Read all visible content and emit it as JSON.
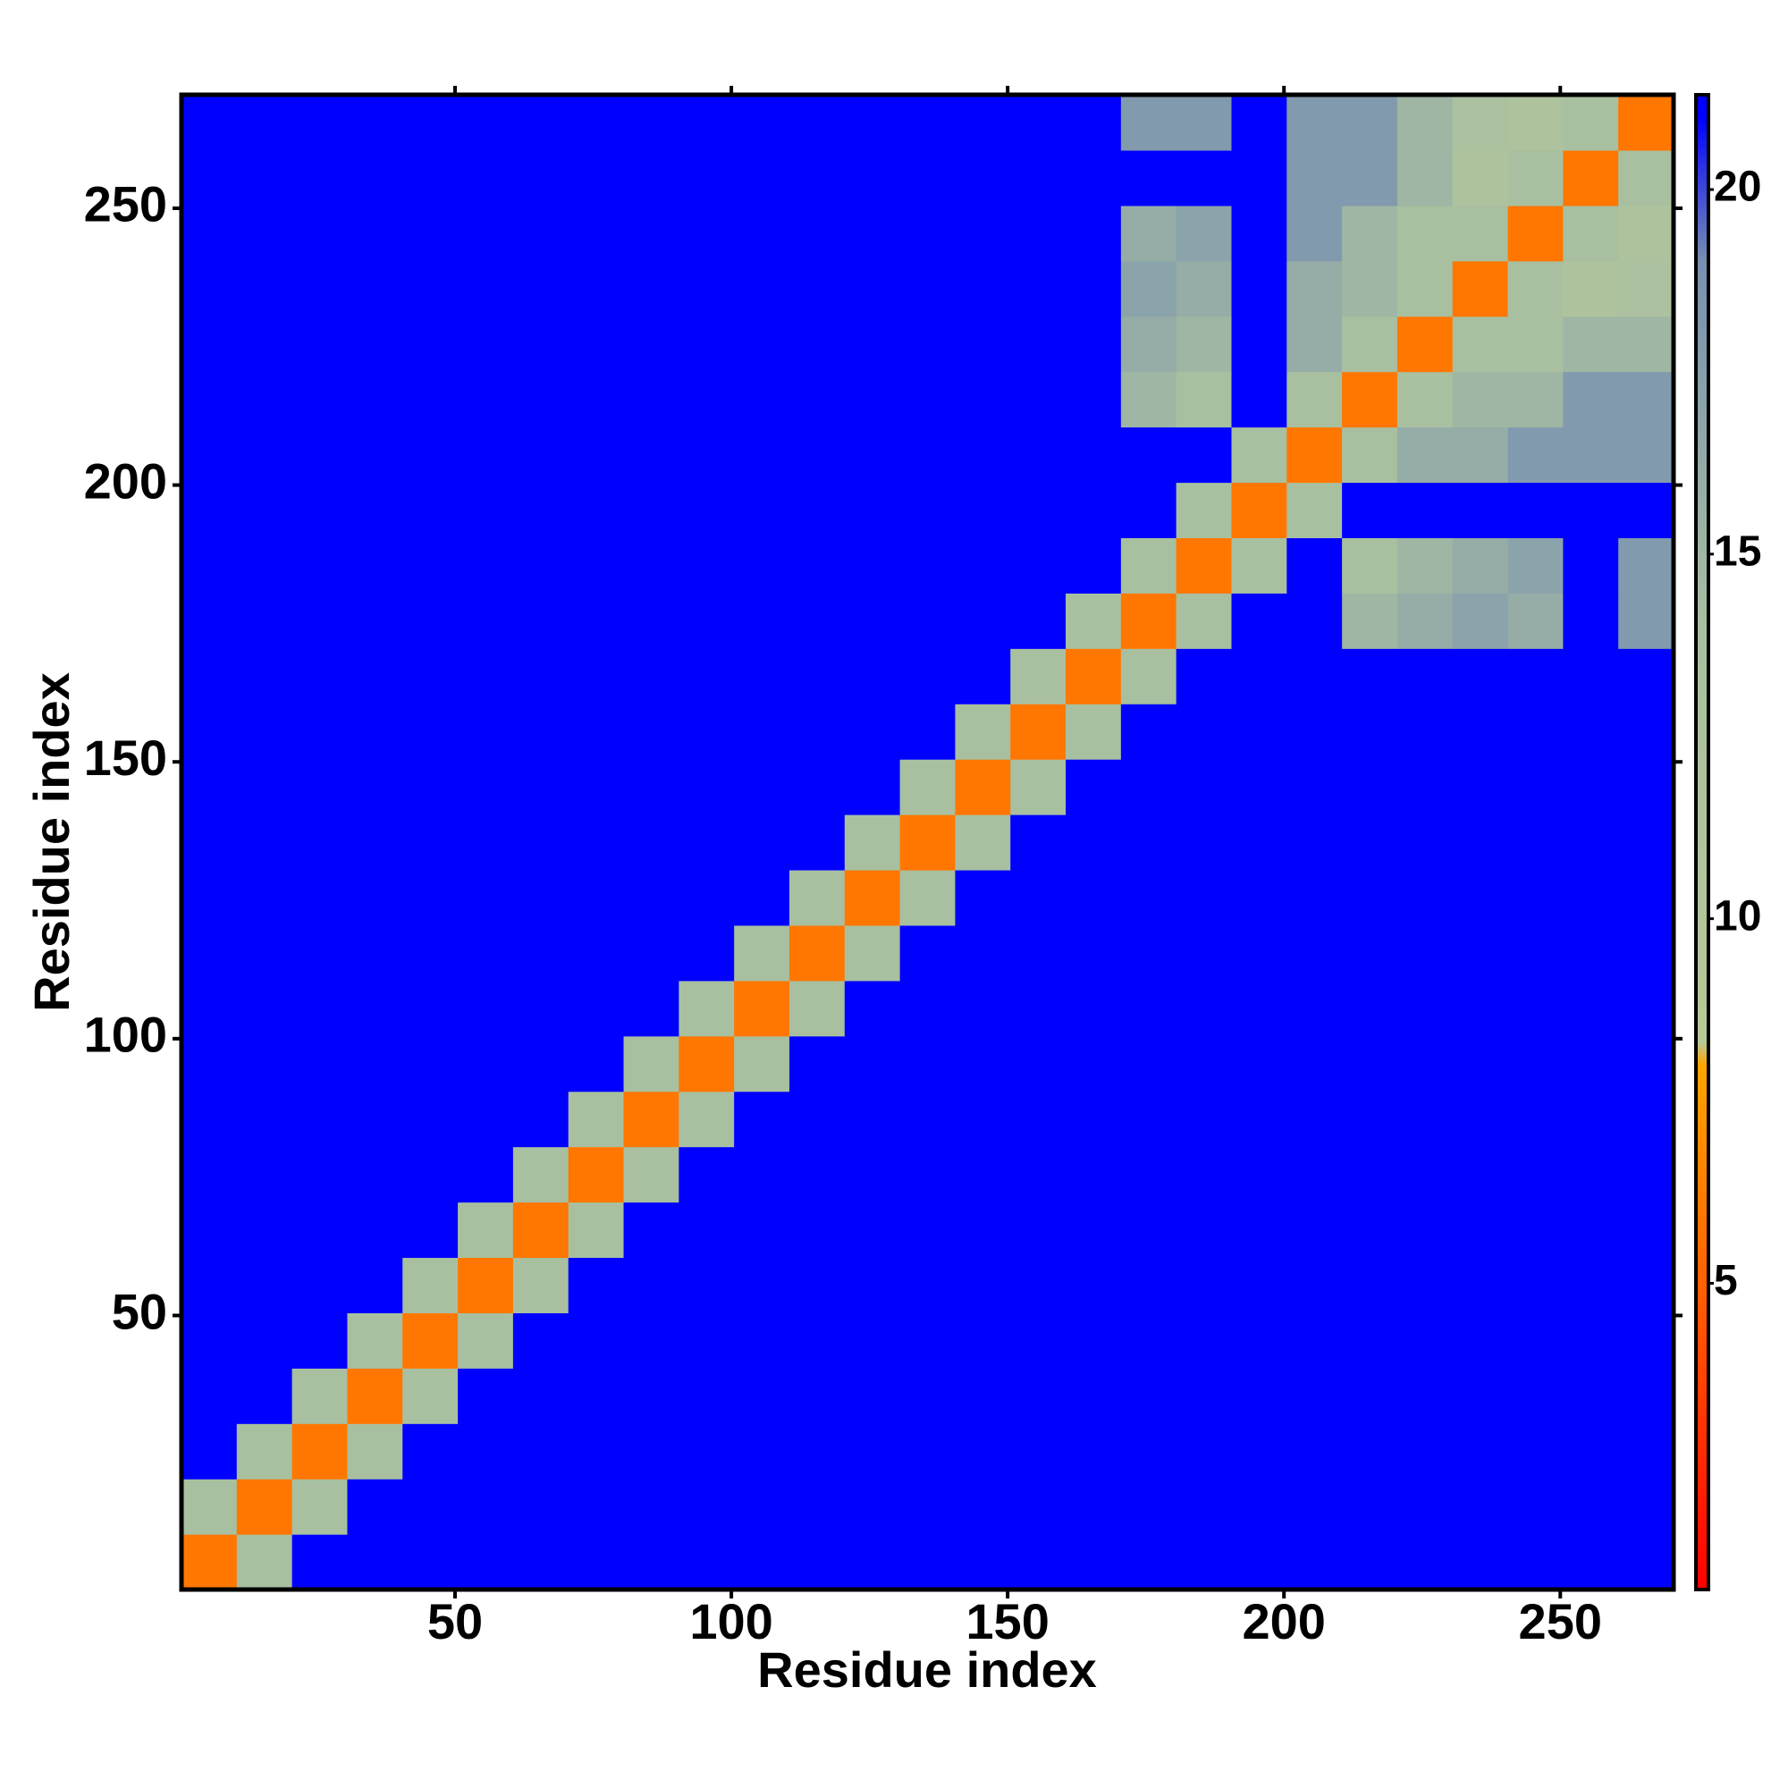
{
  "chart_data": {
    "type": "heatmap",
    "xlabel": "Residue index",
    "ylabel": "Residue index",
    "x": [
      5.5,
      15.5,
      25.5,
      35.5,
      45.5,
      55.5,
      65.5,
      75.5,
      85.5,
      95.5,
      105.5,
      115.5,
      125.5,
      135.5,
      145.5,
      155.5,
      165.5,
      175.5,
      185.5,
      195.5,
      205.5,
      215.5,
      225.5,
      235.5,
      245.5,
      255.5,
      265.5
    ],
    "y": [
      5.5,
      15.5,
      25.5,
      35.5,
      45.5,
      55.5,
      65.5,
      75.5,
      85.5,
      95.5,
      105.5,
      115.5,
      125.5,
      135.5,
      145.5,
      155.5,
      165.5,
      175.5,
      185.5,
      195.5,
      205.5,
      215.5,
      225.5,
      235.5,
      245.5,
      255.5,
      265.5
    ],
    "xlim": [
      0.5,
      270.5
    ],
    "ylim": [
      0.5,
      270.5
    ],
    "xticks": [
      50,
      100,
      150,
      200,
      250
    ],
    "yticks": [
      50,
      100,
      150,
      200,
      250
    ],
    "zlim": [
      0.8,
      21.3
    ],
    "zticks": [
      5,
      10,
      15,
      20
    ],
    "colorscale": [
      [
        0.8,
        "#ff0000"
      ],
      [
        8,
        "#ffa500"
      ],
      [
        8.3,
        "#b8c898"
      ],
      [
        14,
        "#a8c0a0"
      ],
      [
        19,
        "#7890b0"
      ],
      [
        21,
        "#0000ff"
      ]
    ],
    "z": [
      [
        6,
        14,
        21,
        21,
        21,
        21,
        21,
        21,
        21,
        21,
        21,
        21,
        21,
        21,
        21,
        21,
        21,
        21,
        21,
        21,
        21,
        21,
        21,
        21,
        21,
        21,
        21
      ],
      [
        14,
        6,
        14,
        21,
        21,
        21,
        21,
        21,
        21,
        21,
        21,
        21,
        21,
        21,
        21,
        21,
        21,
        21,
        21,
        21,
        21,
        21,
        21,
        21,
        21,
        21,
        21
      ],
      [
        21,
        14,
        6,
        14,
        21,
        21,
        21,
        21,
        21,
        21,
        21,
        21,
        21,
        21,
        21,
        21,
        21,
        21,
        21,
        21,
        21,
        21,
        21,
        21,
        21,
        21,
        21
      ],
      [
        21,
        21,
        14,
        6,
        14,
        21,
        21,
        21,
        21,
        21,
        21,
        21,
        21,
        21,
        21,
        21,
        21,
        21,
        21,
        21,
        21,
        21,
        21,
        21,
        21,
        21,
        21
      ],
      [
        21,
        21,
        21,
        14,
        6,
        14,
        21,
        21,
        21,
        21,
        21,
        21,
        21,
        21,
        21,
        21,
        21,
        21,
        21,
        21,
        21,
        21,
        21,
        21,
        21,
        21,
        21
      ],
      [
        21,
        21,
        21,
        21,
        14,
        6,
        14,
        21,
        21,
        21,
        21,
        21,
        21,
        21,
        21,
        21,
        21,
        21,
        21,
        21,
        21,
        21,
        21,
        21,
        21,
        21,
        21
      ],
      [
        21,
        21,
        21,
        21,
        21,
        14,
        6,
        14,
        21,
        21,
        21,
        21,
        21,
        21,
        21,
        21,
        21,
        21,
        21,
        21,
        21,
        21,
        21,
        21,
        21,
        21,
        21
      ],
      [
        21,
        21,
        21,
        21,
        21,
        21,
        14,
        6,
        14,
        21,
        21,
        21,
        21,
        21,
        21,
        21,
        21,
        21,
        21,
        21,
        21,
        21,
        21,
        21,
        21,
        21,
        21
      ],
      [
        21,
        21,
        21,
        21,
        21,
        21,
        21,
        14,
        6,
        14,
        21,
        21,
        21,
        21,
        21,
        21,
        21,
        21,
        21,
        21,
        21,
        21,
        21,
        21,
        21,
        21,
        21
      ],
      [
        21,
        21,
        21,
        21,
        21,
        21,
        21,
        21,
        14,
        6,
        14,
        21,
        21,
        21,
        21,
        21,
        21,
        21,
        21,
        21,
        21,
        21,
        21,
        21,
        21,
        21,
        21
      ],
      [
        21,
        21,
        21,
        21,
        21,
        21,
        21,
        21,
        21,
        14,
        6,
        14,
        21,
        21,
        21,
        21,
        21,
        21,
        21,
        21,
        21,
        21,
        21,
        21,
        21,
        21,
        21
      ],
      [
        21,
        21,
        21,
        21,
        21,
        21,
        21,
        21,
        21,
        21,
        14,
        6,
        14,
        21,
        21,
        21,
        21,
        21,
        21,
        21,
        21,
        21,
        21,
        21,
        21,
        21,
        21
      ],
      [
        21,
        21,
        21,
        21,
        21,
        21,
        21,
        21,
        21,
        21,
        21,
        14,
        6,
        14,
        21,
        21,
        21,
        21,
        21,
        21,
        21,
        21,
        21,
        21,
        21,
        21,
        21
      ],
      [
        21,
        21,
        21,
        21,
        21,
        21,
        21,
        21,
        21,
        21,
        21,
        21,
        14,
        6,
        14,
        21,
        21,
        21,
        21,
        21,
        21,
        21,
        21,
        21,
        21,
        21,
        21
      ],
      [
        21,
        21,
        21,
        21,
        21,
        21,
        21,
        21,
        21,
        21,
        21,
        21,
        21,
        14,
        6,
        14,
        21,
        21,
        21,
        21,
        21,
        21,
        21,
        21,
        21,
        21,
        21
      ],
      [
        21,
        21,
        21,
        21,
        21,
        21,
        21,
        21,
        21,
        21,
        21,
        21,
        21,
        21,
        14,
        6,
        14,
        21,
        21,
        21,
        21,
        21,
        21,
        21,
        21,
        21,
        21
      ],
      [
        21,
        21,
        21,
        21,
        21,
        21,
        21,
        21,
        21,
        21,
        21,
        21,
        21,
        21,
        21,
        14,
        6,
        14,
        21,
        21,
        21,
        21,
        21,
        21,
        21,
        21,
        21
      ],
      [
        21,
        21,
        21,
        21,
        21,
        21,
        21,
        21,
        21,
        21,
        21,
        21,
        21,
        21,
        21,
        21,
        14,
        6,
        14,
        21,
        21,
        15,
        16,
        17,
        16,
        21,
        18
      ],
      [
        21,
        21,
        21,
        21,
        21,
        21,
        21,
        21,
        21,
        21,
        21,
        21,
        21,
        21,
        21,
        21,
        21,
        14,
        6,
        14,
        21,
        14,
        15,
        16,
        17,
        21,
        18
      ],
      [
        21,
        21,
        21,
        21,
        21,
        21,
        21,
        21,
        21,
        21,
        21,
        21,
        21,
        21,
        21,
        21,
        21,
        21,
        14,
        6,
        14,
        21,
        21,
        21,
        21,
        21,
        21
      ],
      [
        21,
        21,
        21,
        21,
        21,
        21,
        21,
        21,
        21,
        21,
        21,
        21,
        21,
        21,
        21,
        21,
        21,
        21,
        21,
        14,
        6,
        14,
        16,
        16,
        18,
        18,
        18
      ],
      [
        21,
        21,
        21,
        21,
        21,
        21,
        21,
        21,
        21,
        21,
        21,
        21,
        21,
        21,
        21,
        21,
        21,
        15,
        14,
        21,
        14,
        6,
        14,
        15,
        15,
        18,
        18
      ],
      [
        21,
        21,
        21,
        21,
        21,
        21,
        21,
        21,
        21,
        21,
        21,
        21,
        21,
        21,
        21,
        21,
        21,
        16,
        15,
        21,
        16,
        14,
        6,
        14,
        14,
        15,
        15
      ],
      [
        21,
        21,
        21,
        21,
        21,
        21,
        21,
        21,
        21,
        21,
        21,
        21,
        21,
        21,
        21,
        21,
        21,
        17,
        16,
        21,
        16,
        15,
        14,
        6,
        14,
        12,
        13
      ],
      [
        21,
        21,
        21,
        21,
        21,
        21,
        21,
        21,
        21,
        21,
        21,
        21,
        21,
        21,
        21,
        21,
        21,
        16,
        17,
        21,
        18,
        15,
        14,
        14,
        6,
        14,
        12
      ],
      [
        21,
        21,
        21,
        21,
        21,
        21,
        21,
        21,
        21,
        21,
        21,
        21,
        21,
        21,
        21,
        21,
        21,
        21,
        21,
        21,
        18,
        18,
        15,
        12,
        14,
        6,
        14
      ],
      [
        21,
        21,
        21,
        21,
        21,
        21,
        21,
        21,
        21,
        21,
        21,
        21,
        21,
        21,
        21,
        21,
        21,
        18,
        18,
        21,
        18,
        18,
        15,
        13,
        12,
        14,
        6
      ]
    ]
  }
}
